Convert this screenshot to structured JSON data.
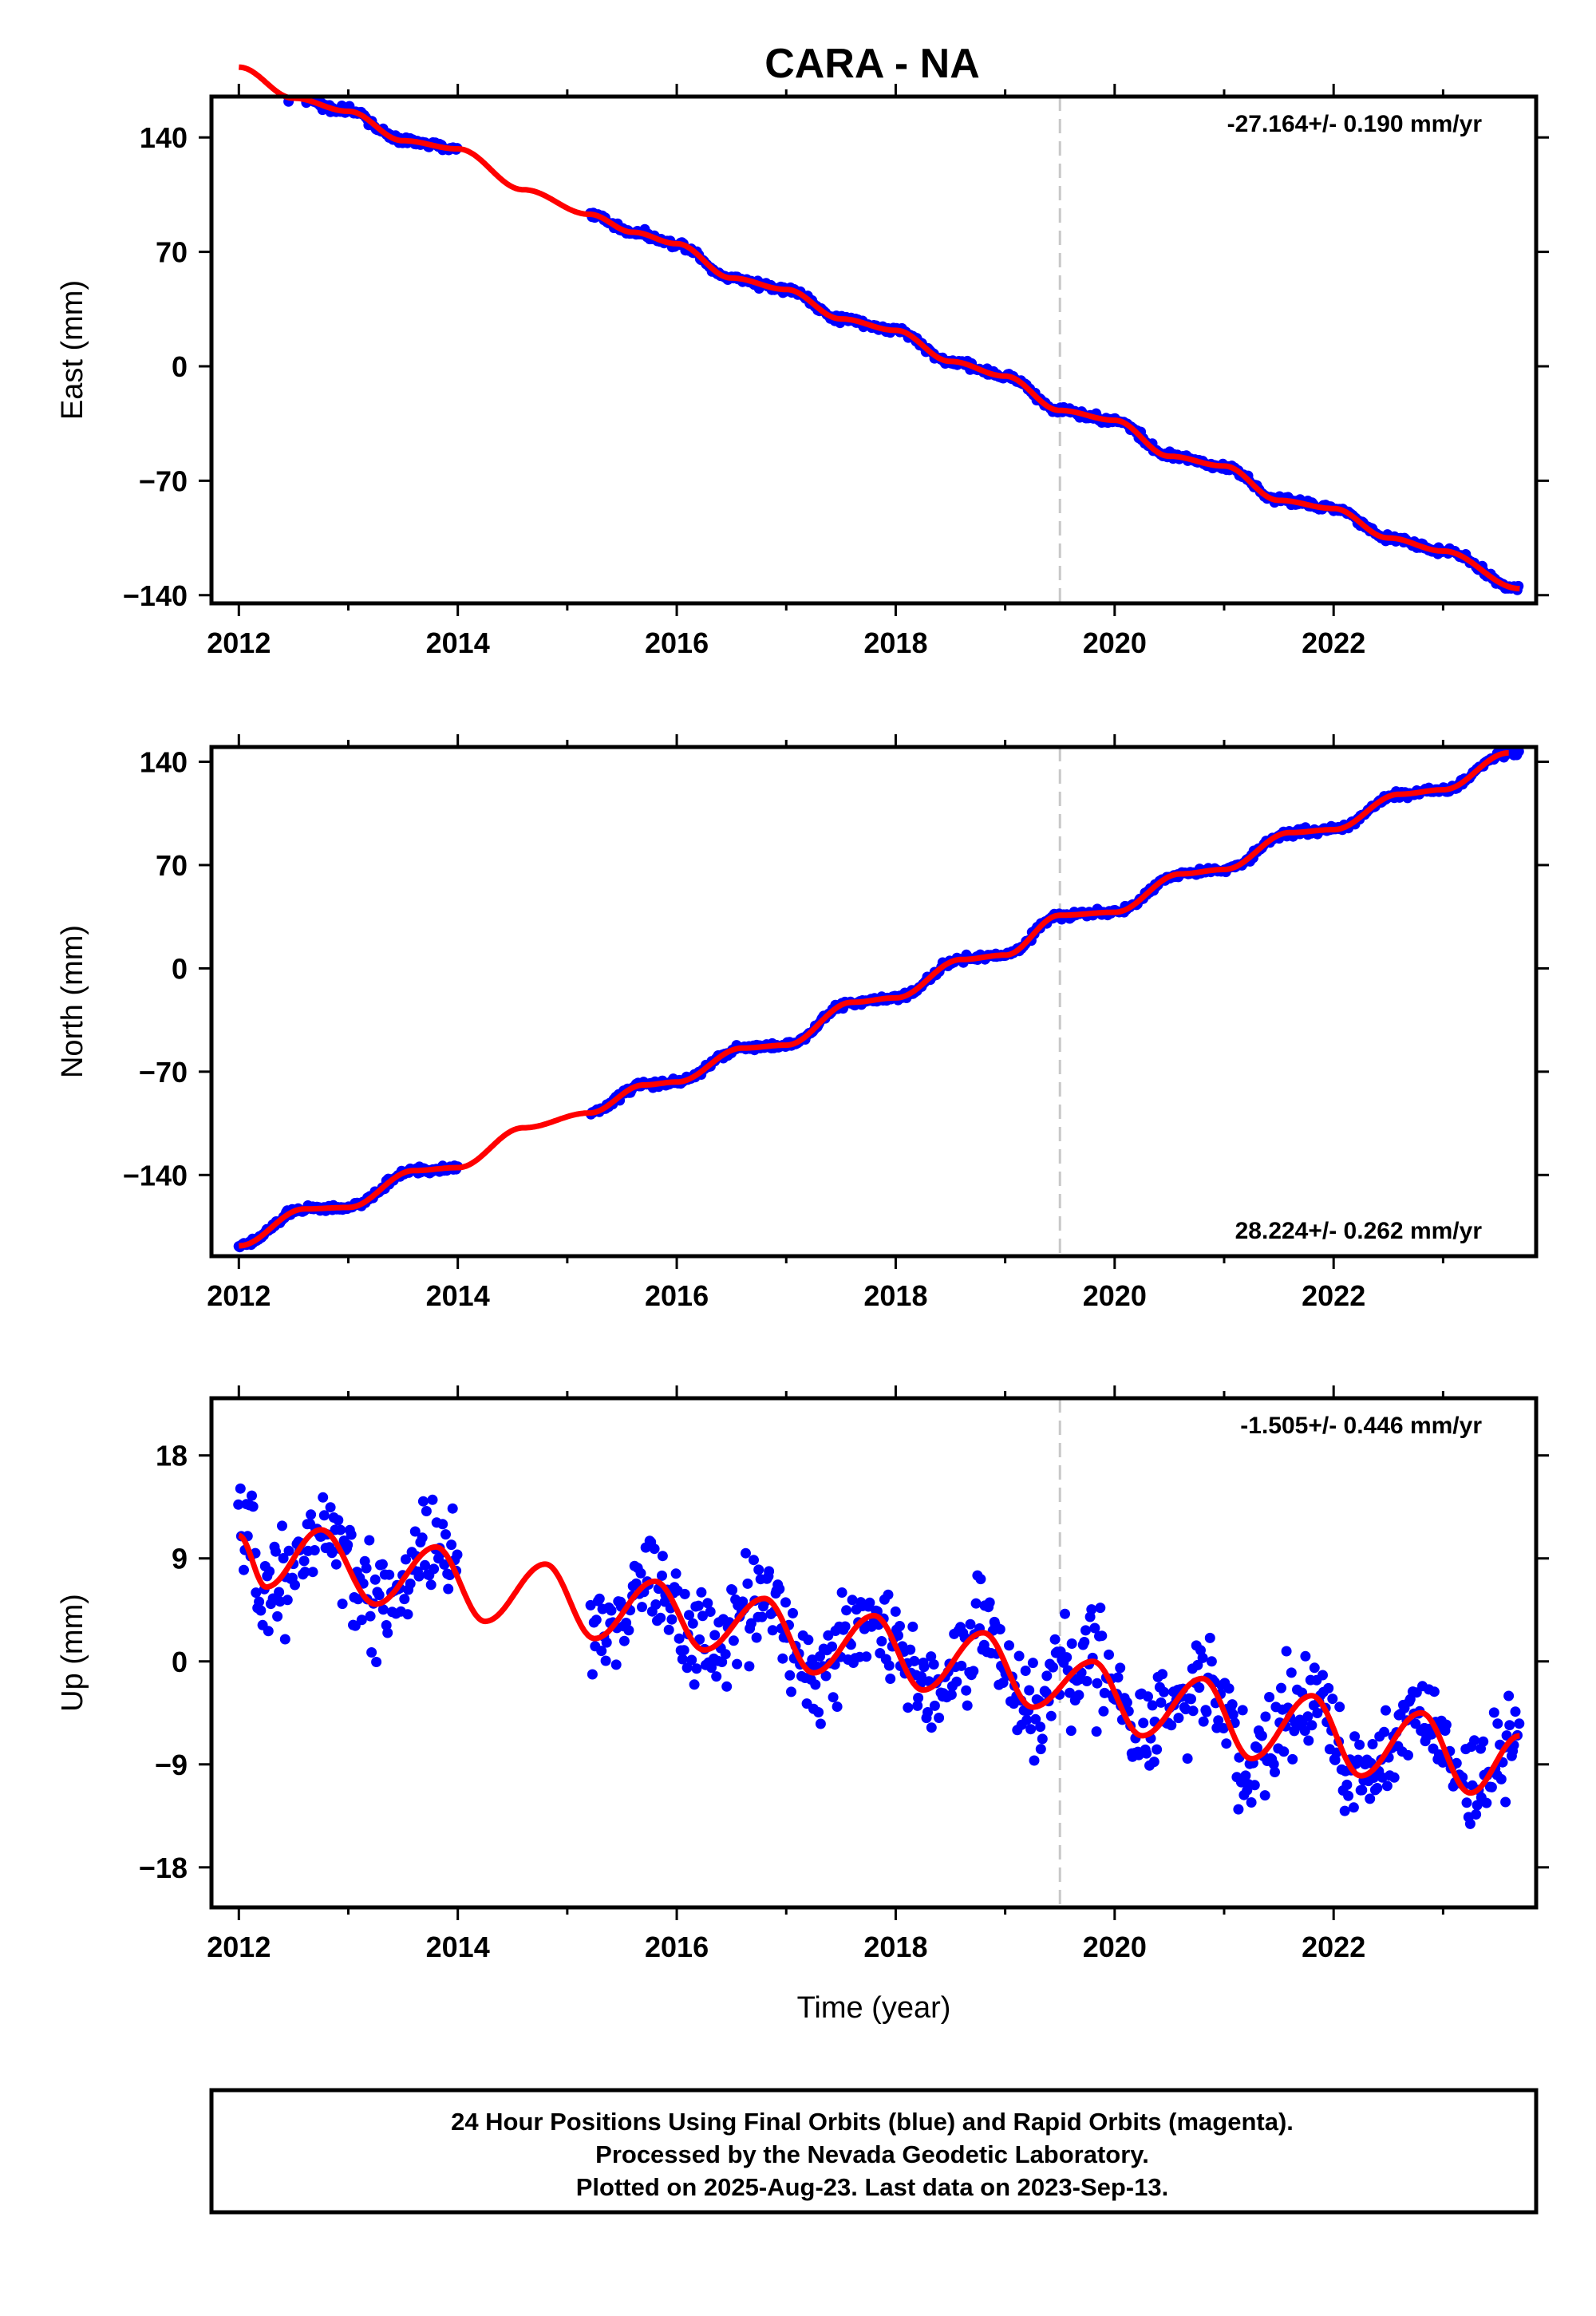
{
  "title": "CARA - NA",
  "colors": {
    "data": "#0000ff",
    "model": "#ff0000",
    "break_line": "#c8c8c8"
  },
  "chart_data": [
    {
      "type": "scatter",
      "ylabel": "East (mm)",
      "xlabel": "",
      "xlim": [
        2011.75,
        2023.85
      ],
      "ylim": [
        -145,
        165
      ],
      "xticks": [
        "2012",
        "2014",
        "2016",
        "2018",
        "2020",
        "2022"
      ],
      "yticks": [
        "140",
        "70",
        "0",
        "−70",
        "−140"
      ],
      "ytick_values": [
        140,
        70,
        0,
        -70,
        -140
      ],
      "rate_text": "-27.164+/- 0.190 mm/yr",
      "rate_position": "top-right",
      "break_year": 2019.5,
      "gap": [
        2014.0,
        2015.2
      ],
      "data_range": [
        2012.0,
        2023.7
      ],
      "trend": {
        "x": [
          2012.0,
          2023.7
        ],
        "y": [
          183,
          -134
        ]
      },
      "model_line": {
        "x": [
          2012.0,
          2012.5,
          2013.0,
          2013.5,
          2014.0,
          2014.6,
          2015.2,
          2015.6,
          2016.0,
          2016.5,
          2017.0,
          2017.5,
          2018.0,
          2018.5,
          2019.0,
          2019.5,
          2020.0,
          2020.5,
          2021.0,
          2021.5,
          2022.0,
          2022.5,
          2023.0,
          2023.7
        ],
        "y": [
          183,
          164,
          156,
          138,
          133,
          108,
          93,
          82,
          75,
          54,
          47,
          29,
          22,
          3,
          -6,
          -27,
          -33,
          -55,
          -61,
          -82,
          -87,
          -105,
          -113,
          -136
        ]
      }
    },
    {
      "type": "scatter",
      "ylabel": "North (mm)",
      "xlabel": "",
      "xlim": [
        2011.75,
        2023.85
      ],
      "ylim": [
        -195,
        150
      ],
      "xticks": [
        "2012",
        "2014",
        "2016",
        "2018",
        "2020",
        "2022"
      ],
      "yticks": [
        "140",
        "70",
        "0",
        "−70",
        "−140"
      ],
      "ytick_values": [
        140,
        70,
        0,
        -70,
        -140
      ],
      "rate_text": "28.224+/- 0.262 mm/yr",
      "rate_position": "bottom-right",
      "break_year": 2019.5,
      "gap": [
        2014.0,
        2015.2
      ],
      "data_range": [
        2012.0,
        2023.7
      ],
      "trend": {
        "x": [
          2012.0,
          2023.7
        ],
        "y": [
          -188,
          142
        ]
      },
      "model_line": {
        "x": [
          2012.0,
          2012.6,
          2013.0,
          2013.6,
          2014.0,
          2014.6,
          2015.2,
          2015.7,
          2016.0,
          2016.6,
          2017.0,
          2017.6,
          2018.0,
          2018.6,
          2019.0,
          2019.5,
          2020.0,
          2020.6,
          2021.0,
          2021.6,
          2022.0,
          2022.6,
          2023.0,
          2023.6
        ],
        "y": [
          -188,
          -163,
          -162,
          -137,
          -135,
          -108,
          -98,
          -79,
          -77,
          -54,
          -52,
          -23,
          -20,
          6,
          9,
          36,
          38,
          64,
          67,
          92,
          94,
          118,
          121,
          146
        ]
      }
    },
    {
      "type": "scatter",
      "ylabel": "Up (mm)",
      "xlabel": "Time (year)",
      "xlim": [
        2011.75,
        2023.85
      ],
      "ylim": [
        -21.5,
        23
      ],
      "xticks": [
        "2012",
        "2014",
        "2016",
        "2018",
        "2020",
        "2022"
      ],
      "yticks": [
        "18",
        "9",
        "0",
        "−9",
        "−18"
      ],
      "ytick_values": [
        18,
        9,
        0,
        -9,
        -18
      ],
      "rate_text": "-1.505+/- 0.446 mm/yr",
      "rate_position": "top-right",
      "break_year": 2019.5,
      "gap": [
        2014.0,
        2015.2
      ],
      "data_range": [
        2012.0,
        2023.7
      ],
      "trend": {
        "x": [
          2012.0,
          2023.7
        ],
        "y": [
          10.5,
          -8.5
        ]
      },
      "model_line": {
        "x": [
          2012.0,
          2012.25,
          2012.75,
          2013.25,
          2013.8,
          2014.25,
          2014.8,
          2015.25,
          2015.8,
          2016.25,
          2016.8,
          2017.25,
          2017.8,
          2018.25,
          2018.8,
          2019.25,
          2019.8,
          2020.25,
          2020.8,
          2021.25,
          2021.8,
          2022.25,
          2022.8,
          2023.25,
          2023.7
        ],
        "y": [
          11,
          6.5,
          11.5,
          5,
          10,
          3.5,
          8.5,
          2,
          7,
          1,
          5.5,
          -1,
          4,
          -2.5,
          2.5,
          -4,
          0,
          -6.5,
          -1.5,
          -8.5,
          -3,
          -10,
          -4.5,
          -11.5,
          -6.5
        ]
      },
      "noise_sd": 3.2
    }
  ],
  "footer": {
    "lines": [
      "24 Hour Positions Using Final Orbits (blue) and Rapid Orbits (magenta).",
      "Processed by the Nevada Geodetic Laboratory.",
      "Plotted on 2025-Aug-23. Last data on 2023-Sep-13."
    ]
  }
}
